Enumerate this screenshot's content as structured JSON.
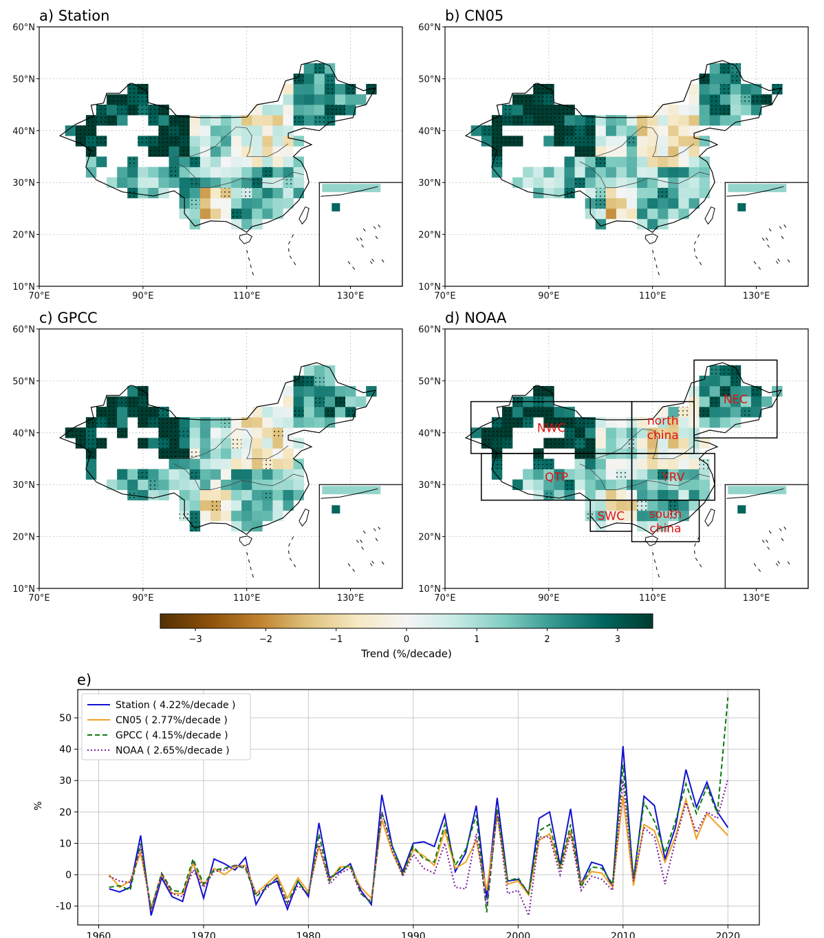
{
  "maps": {
    "panels": [
      {
        "title": "a) Station",
        "variant": 0,
        "show_regions": false
      },
      {
        "title": "b) CN05",
        "variant": 1,
        "show_regions": false
      },
      {
        "title": "c) GPCC",
        "variant": 2,
        "show_regions": false
      },
      {
        "title": "d) NOAA",
        "variant": 3,
        "show_regions": true
      }
    ],
    "lat_ticks": [
      "60°N",
      "50°N",
      "40°N",
      "30°N",
      "20°N",
      "10°N"
    ],
    "lon_ticks": [
      "70°E",
      "90°E",
      "110°E",
      "130°E"
    ],
    "regions": [
      {
        "name": "NWC",
        "lon": [
          75,
          106
        ],
        "lat": [
          36,
          46
        ]
      },
      {
        "name": "QTP",
        "lon": [
          77,
          106
        ],
        "lat": [
          27,
          36
        ]
      },
      {
        "name": "north china",
        "lon": [
          106,
          118
        ],
        "lat": [
          36,
          46
        ]
      },
      {
        "name": "NEC",
        "lon": [
          118,
          134
        ],
        "lat": [
          39,
          54
        ]
      },
      {
        "name": "YRV",
        "lon": [
          106,
          122
        ],
        "lat": [
          27,
          36
        ]
      },
      {
        "name": "SWC",
        "lon": [
          98,
          106
        ],
        "lat": [
          21,
          27
        ]
      },
      {
        "name": "south china",
        "lon": [
          106,
          119
        ],
        "lat": [
          19,
          27
        ]
      }
    ]
  },
  "colorbar": {
    "label": "Trend (%/decade)",
    "ticks": [
      "−3",
      "−2",
      "−1",
      "0",
      "1",
      "2",
      "3"
    ],
    "range": [
      -3.5,
      3.5
    ],
    "colors": [
      "#543005",
      "#8c510a",
      "#bf812d",
      "#dfc27d",
      "#f6e8c3",
      "#f5f5f5",
      "#c7eae5",
      "#80cdc1",
      "#35978f",
      "#01665e",
      "#003c30"
    ]
  },
  "chart_data": {
    "type": "line",
    "panel_label": "e)",
    "ylabel": "%",
    "xlabel": "",
    "xlim": [
      1958,
      2023
    ],
    "ylim": [
      -16,
      59
    ],
    "xticks": [
      1960,
      1970,
      1980,
      1990,
      2000,
      2010,
      2020
    ],
    "yticks": [
      -10,
      0,
      10,
      20,
      30,
      40,
      50
    ],
    "grid": true,
    "legend_position": "top-left",
    "x": [
      1961,
      1962,
      1963,
      1964,
      1965,
      1966,
      1967,
      1968,
      1969,
      1970,
      1971,
      1972,
      1973,
      1974,
      1975,
      1976,
      1977,
      1978,
      1979,
      1980,
      1981,
      1982,
      1983,
      1984,
      1985,
      1986,
      1987,
      1988,
      1989,
      1990,
      1991,
      1992,
      1993,
      1994,
      1995,
      1996,
      1997,
      1998,
      1999,
      2000,
      2001,
      2002,
      2003,
      2004,
      2005,
      2006,
      2007,
      2008,
      2009,
      2010,
      2011,
      2012,
      2013,
      2014,
      2015,
      2016,
      2017,
      2018,
      2019,
      2020
    ],
    "series": [
      {
        "name": "Station ( 4.22%/decade )",
        "color": "#1010d0",
        "dash": "solid",
        "values": [
          -4.5,
          -5.5,
          -4,
          12.5,
          -13,
          -1,
          -7,
          -8.5,
          4,
          -7.5,
          5,
          3.5,
          1.5,
          5.5,
          -9.5,
          -3.5,
          -2,
          -11,
          -2,
          -7,
          16.5,
          -1,
          1,
          3.5,
          -5,
          -9.5,
          25.5,
          9,
          1,
          10,
          10.5,
          9,
          19,
          1,
          7,
          22,
          -7.5,
          24.5,
          -2,
          -1.5,
          -6,
          18,
          20,
          3,
          21,
          -3,
          4,
          3,
          -4,
          41,
          -2,
          25,
          22,
          5,
          15,
          33.5,
          21.5,
          29.5,
          20,
          15
        ]
      },
      {
        "name": "CN05 ( 2.77%/decade )",
        "color": "#f0a020",
        "dash": "solid",
        "values": [
          0,
          -4,
          -2,
          7,
          -10.5,
          0,
          -6,
          -6,
          3.5,
          -3.5,
          2,
          0,
          2.5,
          3,
          -6,
          -3,
          0,
          -7.5,
          -1,
          -5.5,
          9,
          -2,
          2.5,
          2.5,
          -4,
          -7.5,
          17.5,
          7,
          0,
          8,
          6,
          3,
          14,
          2,
          4,
          11,
          -5,
          19,
          -3,
          -2,
          -6.5,
          11,
          13,
          2,
          14,
          -3,
          1,
          0.5,
          -4,
          25,
          -3.5,
          16,
          14,
          4,
          12,
          24,
          11.5,
          19.5,
          16,
          12.5
        ]
      },
      {
        "name": "GPCC ( 4.15%/decade )",
        "color": "#0d7a0d",
        "dash": "dashed",
        "values": [
          -4,
          -3.5,
          -5,
          10,
          -11,
          0.5,
          -5,
          -5.5,
          5,
          -3,
          1.5,
          2,
          3,
          2,
          -7,
          -4,
          -1,
          -9,
          -2,
          -6.5,
          13,
          -2,
          2,
          3,
          -6,
          -9,
          20,
          9,
          0,
          9,
          5,
          4,
          16,
          3,
          8,
          19,
          -12,
          21,
          -2,
          -1,
          -6,
          14,
          16,
          2,
          16,
          -4,
          2.5,
          2,
          -3,
          35,
          -1,
          23,
          17,
          7,
          17,
          29,
          19.5,
          28,
          19.5,
          56.5
        ]
      },
      {
        "name": "NOAA ( 2.65%/decade )",
        "color": "#8020a0",
        "dash": "dotted",
        "values": [
          -0.5,
          -2,
          -2.5,
          9,
          -12,
          0,
          -6,
          -7,
          1.5,
          -4,
          1,
          1.5,
          3,
          2.5,
          -6,
          -4.5,
          -1,
          -9.5,
          -3.5,
          -6,
          10,
          -3,
          0.5,
          2,
          -6,
          -8.5,
          20,
          7.5,
          -0.5,
          6.5,
          2,
          0.5,
          10,
          -4,
          -4.5,
          13,
          -10,
          20,
          -6,
          -5,
          -13,
          12,
          12,
          0,
          13,
          -5,
          -0.5,
          -1.5,
          -5,
          30,
          -2,
          15,
          12,
          -3,
          11,
          23,
          13.5,
          20,
          18,
          30.5
        ]
      }
    ]
  }
}
